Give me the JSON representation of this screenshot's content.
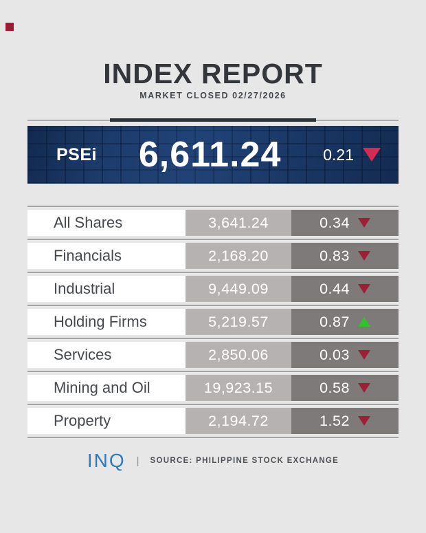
{
  "header": {
    "title": "INDEX REPORT",
    "subtitle": "MARKET CLOSED 02/27/2026"
  },
  "banner": {
    "label": "PSEi",
    "value": "6,611.24",
    "change": "0.21",
    "direction": "down",
    "bg_color": "#1c3c6c",
    "down_color": "#d62a52"
  },
  "table": {
    "rows": [
      {
        "name": "All Shares",
        "value": "3,641.24",
        "change": "0.34",
        "direction": "down"
      },
      {
        "name": "Financials",
        "value": "2,168.20",
        "change": "0.83",
        "direction": "down"
      },
      {
        "name": "Industrial",
        "value": "9,449.09",
        "change": "0.44",
        "direction": "down"
      },
      {
        "name": "Holding Firms",
        "value": "5,219.57",
        "change": "0.87",
        "direction": "up"
      },
      {
        "name": "Services",
        "value": "2,850.06",
        "change": "0.03",
        "direction": "down"
      },
      {
        "name": "Mining and Oil",
        "value": "19,923.15",
        "change": "0.58",
        "direction": "down"
      },
      {
        "name": "Property",
        "value": "2,194.72",
        "change": "1.52",
        "direction": "down"
      }
    ],
    "colors": {
      "down_triangle": "#9b1f36",
      "up_triangle": "#2fc428",
      "value_cell_bg": "#b6b2b2",
      "change_cell_bg": "#7e7a7a"
    }
  },
  "footer": {
    "logo": "INQ",
    "separator": "|",
    "source": "SOURCE: PHILIPPINE STOCK EXCHANGE",
    "logo_color": "#2f7bbc"
  },
  "chart_data": {
    "type": "table",
    "title": "INDEX REPORT",
    "subtitle": "MARKET CLOSED 02/27/2026",
    "headline_index": {
      "name": "PSEi",
      "value": 6611.24,
      "change_pct": 0.21,
      "direction": "down"
    },
    "categories": [
      "All Shares",
      "Financials",
      "Industrial",
      "Holding Firms",
      "Services",
      "Mining and Oil",
      "Property"
    ],
    "series": [
      {
        "name": "Index Value",
        "values": [
          3641.24,
          2168.2,
          9449.09,
          5219.57,
          2850.06,
          19923.15,
          2194.72
        ]
      },
      {
        "name": "Change %",
        "values": [
          -0.34,
          -0.83,
          -0.44,
          0.87,
          -0.03,
          -0.58,
          -1.52
        ]
      }
    ],
    "source": "PHILIPPINE STOCK EXCHANGE"
  }
}
